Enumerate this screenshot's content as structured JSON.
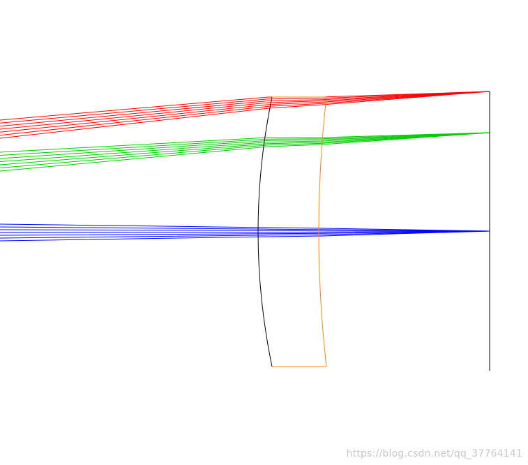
{
  "diagram": {
    "lens_front_surface_color": "#000000",
    "lens_back_surface_color": "#f08a10",
    "image_plane_color": "#000000",
    "ray_bundles": [
      {
        "field": "on-axis",
        "color": "#0000ff",
        "ray_count": 7
      },
      {
        "field": "mid-field",
        "color": "#00cc00",
        "ray_count": 7
      },
      {
        "field": "full-field",
        "color": "#ff0000",
        "ray_count": 7
      }
    ]
  },
  "watermark": {
    "text": "https://blog.csdn.net/qq_37764141"
  }
}
